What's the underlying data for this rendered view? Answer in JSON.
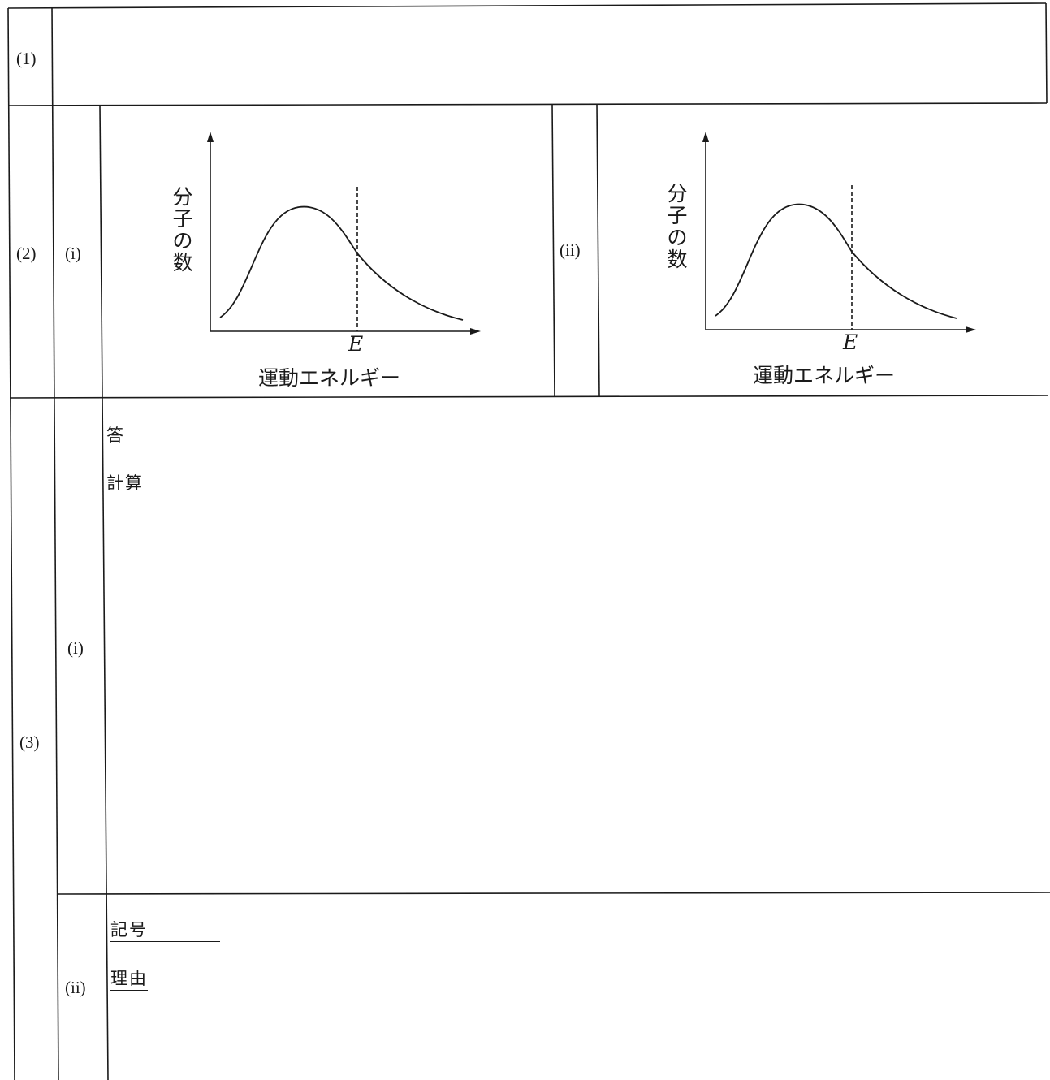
{
  "q1": {
    "label": "(1)"
  },
  "q2": {
    "label": "(2)",
    "parts": [
      {
        "label": "(i)",
        "ylabel": [
          "分",
          "子",
          "の",
          "数"
        ],
        "xlabel": "運動エネルギー",
        "marker": "E"
      },
      {
        "label": "(ii)",
        "ylabel": [
          "分",
          "子",
          "の",
          "数"
        ],
        "xlabel": "運動エネルギー",
        "marker": "E"
      }
    ]
  },
  "q3": {
    "label": "(3)",
    "part_i": {
      "label": "(i)",
      "answer_label": "答",
      "calc_label": "計算"
    },
    "part_ii": {
      "label": "(ii)",
      "symbol_label": "記号",
      "reason_label": "理由"
    }
  }
}
